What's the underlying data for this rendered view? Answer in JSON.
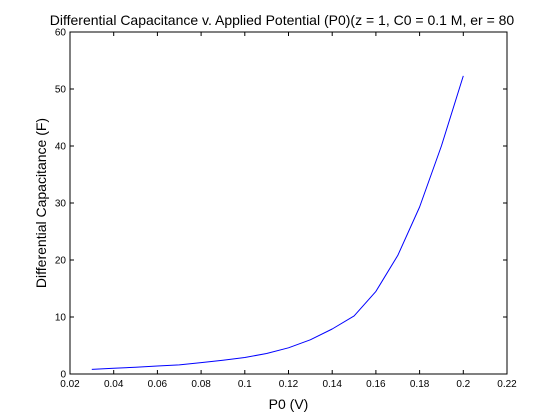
{
  "chart_data": {
    "type": "line",
    "title": "Differential Capacitance v. Applied Potential (P0)(z = 1, C0 = 0.1 M, er = 80",
    "xlabel": "P0 (V)",
    "ylabel": "Differential Capacitance (F)",
    "xlim": [
      0.02,
      0.22
    ],
    "ylim": [
      0,
      60
    ],
    "xticks": [
      "0.02",
      "0.04",
      "0.06",
      "0.08",
      "0.1",
      "0.12",
      "0.14",
      "0.16",
      "0.18",
      "0.2",
      "0.22"
    ],
    "yticks": [
      "0",
      "10",
      "20",
      "30",
      "40",
      "50",
      "60"
    ],
    "grid": false,
    "series": [
      {
        "color": "#0000ff",
        "x": [
          0.03,
          0.04,
          0.05,
          0.06,
          0.07,
          0.08,
          0.09,
          0.1,
          0.11,
          0.12,
          0.13,
          0.14,
          0.15,
          0.16,
          0.17,
          0.18,
          0.19,
          0.2
        ],
        "y": [
          0.8,
          1.0,
          1.2,
          1.4,
          1.6,
          2.0,
          2.4,
          2.9,
          3.6,
          4.6,
          6.0,
          7.9,
          10.2,
          14.5,
          20.8,
          29.3,
          40.0,
          52.3
        ]
      }
    ]
  }
}
